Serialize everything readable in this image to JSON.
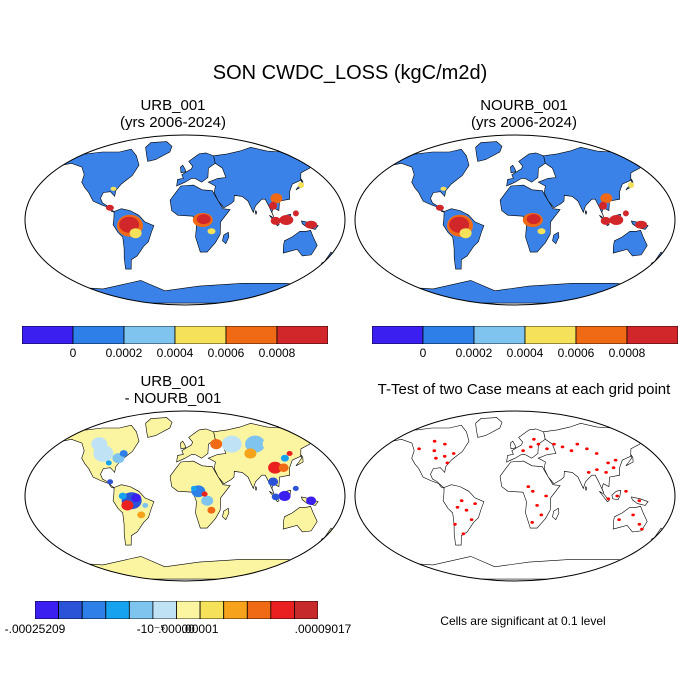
{
  "title": "SON CWDC_LOSS (kgC/m2d)",
  "panels": {
    "urb": {
      "case": "URB_001",
      "years": "(yrs 2006-2024)"
    },
    "nourb": {
      "case": "NOURB_001",
      "years": "(yrs 2006-2024)"
    },
    "diff": {
      "line1": "URB_001",
      "line2": "- NOURB_001"
    },
    "ttest": {
      "title": "T-Test of two Case means at each grid point",
      "note": "Cells are significant at 0.1 level"
    }
  },
  "colorbar_main": {
    "colors": [
      "#3b1ff0",
      "#2f7fe8",
      "#7ec4ee",
      "#f6e15a",
      "#f06a16",
      "#d2272a"
    ],
    "labels": [
      "0",
      "0.0002",
      "0.0004",
      "0.0006",
      "0.0008"
    ]
  },
  "colorbar_diff": {
    "colors": [
      "#3b1ff0",
      "#2b53d8",
      "#2f7fe8",
      "#17a2f0",
      "#7ec4ee",
      "#bfe3f5",
      "#fbf4a0",
      "#f6e15a",
      "#f6a21a",
      "#f06a16",
      "#ea2020",
      "#c72a2a"
    ],
    "labels": [
      "-.00025209",
      "-10⁻⁵",
      ".00000",
      ".00001",
      ".00009017"
    ]
  },
  "colors": {
    "ocean": "#ffffff",
    "land_main": "#3b82e8",
    "hot": "#d2272a",
    "warm": "#f06a16",
    "mid": "#f6e15a",
    "diff_land": "#fbf4a0",
    "sig": "#ff0000"
  }
}
